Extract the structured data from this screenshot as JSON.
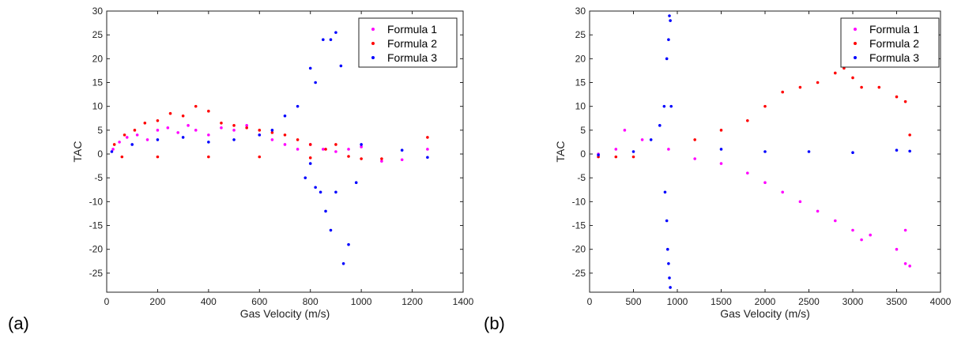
{
  "chart_data": [
    {
      "type": "scatter",
      "panel_label": "(a)",
      "xlabel": "Gas Velocity (m/s)",
      "ylabel": "TAC",
      "xlim": [
        0,
        1400
      ],
      "ylim": [
        -29,
        30
      ],
      "xticks": [
        0,
        200,
        400,
        600,
        800,
        1000,
        1200,
        1400
      ],
      "yticks": [
        -25,
        -20,
        -15,
        -10,
        -5,
        0,
        5,
        10,
        15,
        20,
        25,
        30
      ],
      "grid": false,
      "legend_position": "top-right",
      "series": [
        {
          "name": "Formula 1",
          "color": "#ff00ff",
          "points": [
            [
              25,
              1
            ],
            [
              50,
              2.5
            ],
            [
              80,
              3.5
            ],
            [
              120,
              4
            ],
            [
              160,
              3
            ],
            [
              200,
              5
            ],
            [
              240,
              5.5
            ],
            [
              280,
              4.5
            ],
            [
              320,
              6
            ],
            [
              350,
              5
            ],
            [
              400,
              4
            ],
            [
              450,
              5.5
            ],
            [
              500,
              5
            ],
            [
              550,
              6
            ],
            [
              600,
              4
            ],
            [
              650,
              3
            ],
            [
              700,
              2
            ],
            [
              750,
              1
            ],
            [
              800,
              2
            ],
            [
              850,
              1
            ],
            [
              900,
              0.5
            ],
            [
              950,
              1
            ],
            [
              1000,
              1.5
            ],
            [
              1080,
              -1.5
            ],
            [
              1160,
              -1.2
            ],
            [
              1260,
              1
            ]
          ]
        },
        {
          "name": "Formula 2",
          "color": "#ff0000",
          "points": [
            [
              30,
              2
            ],
            [
              70,
              4
            ],
            [
              110,
              5
            ],
            [
              150,
              6.5
            ],
            [
              200,
              7
            ],
            [
              250,
              8.5
            ],
            [
              300,
              8
            ],
            [
              350,
              10
            ],
            [
              400,
              9
            ],
            [
              450,
              6.5
            ],
            [
              500,
              6
            ],
            [
              550,
              5.5
            ],
            [
              600,
              5
            ],
            [
              650,
              4.5
            ],
            [
              700,
              4
            ],
            [
              750,
              3
            ],
            [
              800,
              2
            ],
            [
              860,
              1
            ],
            [
              900,
              2
            ],
            [
              950,
              -0.5
            ],
            [
              1000,
              -1
            ],
            [
              1080,
              -1
            ],
            [
              1260,
              3.5
            ],
            [
              60,
              -0.6
            ],
            [
              200,
              -0.6
            ],
            [
              400,
              -0.6
            ],
            [
              600,
              -0.6
            ],
            [
              800,
              -0.8
            ]
          ]
        },
        {
          "name": "Formula 3",
          "color": "#0000ff",
          "points": [
            [
              20,
              0.5
            ],
            [
              100,
              2
            ],
            [
              200,
              3
            ],
            [
              300,
              3.5
            ],
            [
              400,
              2.5
            ],
            [
              500,
              3
            ],
            [
              600,
              4
            ],
            [
              650,
              5
            ],
            [
              700,
              8
            ],
            [
              750,
              10
            ],
            [
              800,
              18
            ],
            [
              820,
              15
            ],
            [
              850,
              24
            ],
            [
              880,
              24
            ],
            [
              900,
              25.5
            ],
            [
              920,
              18.5
            ],
            [
              780,
              -5
            ],
            [
              800,
              -2
            ],
            [
              820,
              -7
            ],
            [
              840,
              -8
            ],
            [
              860,
              -12
            ],
            [
              880,
              -16
            ],
            [
              900,
              -8
            ],
            [
              950,
              -19
            ],
            [
              930,
              -23
            ],
            [
              980,
              -6
            ],
            [
              1000,
              2
            ],
            [
              1160,
              0.8
            ],
            [
              1260,
              -0.7
            ]
          ]
        }
      ]
    },
    {
      "type": "scatter",
      "panel_label": "(b)",
      "xlabel": "Gas Velocity (m/s)",
      "ylabel": "TAC",
      "xlim": [
        0,
        4000
      ],
      "ylim": [
        -29,
        30
      ],
      "xticks": [
        0,
        500,
        1000,
        1500,
        2000,
        2500,
        3000,
        3500,
        4000
      ],
      "yticks": [
        -25,
        -20,
        -15,
        -10,
        -5,
        0,
        5,
        10,
        15,
        20,
        25,
        30
      ],
      "grid": false,
      "legend_position": "top-right",
      "series": [
        {
          "name": "Formula 1",
          "color": "#ff00ff",
          "points": [
            [
              100,
              0
            ],
            [
              300,
              1
            ],
            [
              400,
              5
            ],
            [
              600,
              3
            ],
            [
              900,
              1
            ],
            [
              1200,
              -1
            ],
            [
              1500,
              -2
            ],
            [
              1800,
              -4
            ],
            [
              2000,
              -6
            ],
            [
              2200,
              -8
            ],
            [
              2400,
              -10
            ],
            [
              2600,
              -12
            ],
            [
              2800,
              -14
            ],
            [
              3000,
              -16
            ],
            [
              3100,
              -18
            ],
            [
              3200,
              -17
            ],
            [
              3500,
              -20
            ],
            [
              3600,
              -23
            ],
            [
              3650,
              -23.5
            ],
            [
              3600,
              -16
            ]
          ]
        },
        {
          "name": "Formula 2",
          "color": "#ff0000",
          "points": [
            [
              100,
              -0.6
            ],
            [
              300,
              -0.6
            ],
            [
              500,
              -0.6
            ],
            [
              1200,
              3
            ],
            [
              1500,
              5
            ],
            [
              1800,
              7
            ],
            [
              2000,
              10
            ],
            [
              2200,
              13
            ],
            [
              2400,
              14
            ],
            [
              2600,
              15
            ],
            [
              2800,
              17
            ],
            [
              2900,
              18
            ],
            [
              3000,
              16
            ],
            [
              3100,
              14
            ],
            [
              3300,
              14
            ],
            [
              3500,
              12
            ],
            [
              3600,
              11
            ],
            [
              3650,
              4
            ]
          ]
        },
        {
          "name": "Formula 3",
          "color": "#0000ff",
          "points": [
            [
              100,
              -0.2
            ],
            [
              500,
              0.5
            ],
            [
              700,
              3
            ],
            [
              800,
              6
            ],
            [
              850,
              10
            ],
            [
              880,
              20
            ],
            [
              900,
              24
            ],
            [
              910,
              29
            ],
            [
              920,
              28
            ],
            [
              930,
              10
            ],
            [
              860,
              -8
            ],
            [
              880,
              -14
            ],
            [
              890,
              -20
            ],
            [
              900,
              -23
            ],
            [
              910,
              -26
            ],
            [
              920,
              -28
            ],
            [
              1500,
              1
            ],
            [
              2000,
              0.5
            ],
            [
              2500,
              0.5
            ],
            [
              3000,
              0.3
            ],
            [
              3500,
              0.8
            ],
            [
              3650,
              0.6
            ]
          ]
        }
      ]
    }
  ]
}
